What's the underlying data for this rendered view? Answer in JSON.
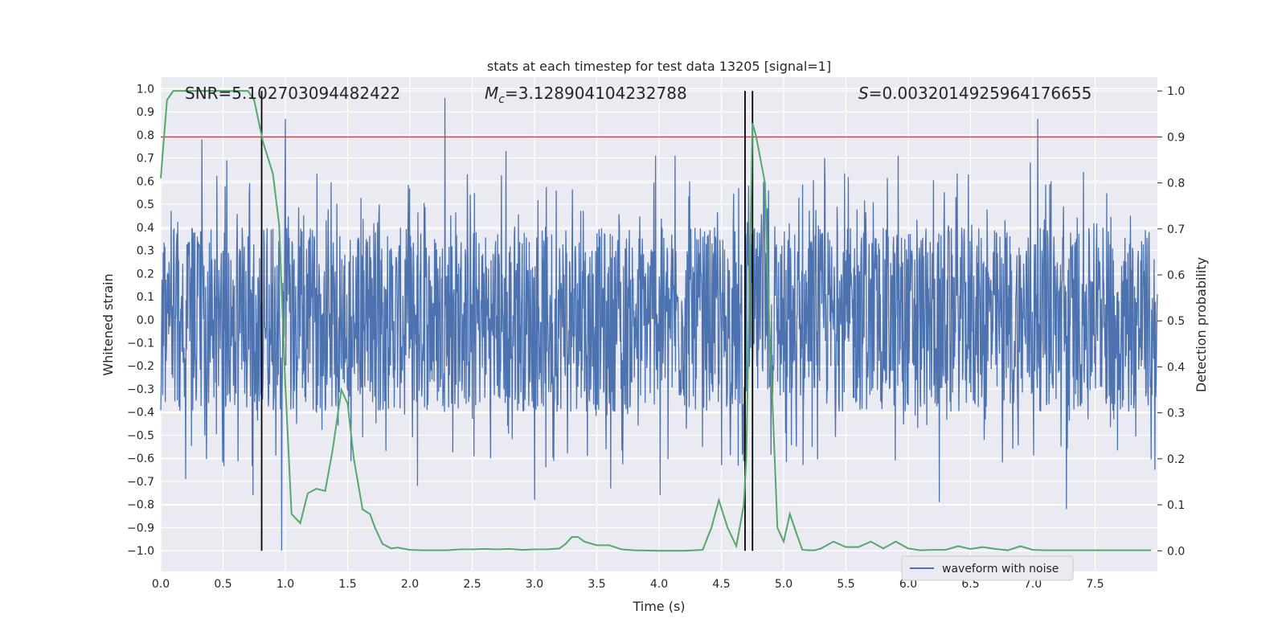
{
  "chart_data": {
    "type": "line",
    "title": "stats at each timestep for test data 13205 [signal=1]",
    "xlabel": "Time (s)",
    "ylabel_left": "Whitened strain",
    "ylabel_right": "Detection probability",
    "xlim": [
      0.0,
      8.0
    ],
    "ylim_left": [
      -1.09,
      1.05
    ],
    "ylim_right": [
      -0.045,
      1.03
    ],
    "x_ticks": [
      0.0,
      0.5,
      1.0,
      1.5,
      2.0,
      2.5,
      3.0,
      3.5,
      4.0,
      4.5,
      5.0,
      5.5,
      6.0,
      6.5,
      7.0,
      7.5
    ],
    "x_tick_labels": [
      "0.0",
      "0.5",
      "1.0",
      "1.5",
      "2.0",
      "2.5",
      "3.0",
      "3.5",
      "4.0",
      "4.5",
      "5.0",
      "5.5",
      "6.0",
      "6.5",
      "7.0",
      "7.5"
    ],
    "y_left_ticks": [
      -1.0,
      -0.9,
      -0.8,
      -0.7,
      -0.6,
      -0.5,
      -0.4,
      -0.3,
      -0.2,
      -0.1,
      0.0,
      0.1,
      0.2,
      0.3,
      0.4,
      0.5,
      0.6,
      0.7,
      0.8,
      0.9,
      1.0
    ],
    "y_left_tick_labels": [
      "−1.0",
      "−0.9",
      "−0.8",
      "−0.7",
      "−0.6",
      "−0.5",
      "−0.4",
      "−0.3",
      "−0.2",
      "−0.1",
      "0.0",
      "0.1",
      "0.2",
      "0.3",
      "0.4",
      "0.5",
      "0.6",
      "0.7",
      "0.8",
      "0.9",
      "1.0"
    ],
    "y_right_ticks": [
      0.0,
      0.1,
      0.2,
      0.3,
      0.4,
      0.5,
      0.6,
      0.7,
      0.8,
      0.9,
      1.0
    ],
    "y_right_tick_labels": [
      "0.0",
      "0.1",
      "0.2",
      "0.3",
      "0.4",
      "0.5",
      "0.6",
      "0.7",
      "0.8",
      "0.9",
      "1.0"
    ],
    "grid": true,
    "annotations": {
      "snr": "SNR=5.102703094482422",
      "mc_symbol": "M",
      "mc_sub": "c",
      "mc_value": "=3.128904104232788",
      "s_symbol": "S",
      "s_value": "=0.0032014925964176655"
    },
    "legend": {
      "placement": "lower-right",
      "entries": [
        "waveform with noise"
      ]
    },
    "threshold": {
      "axis": "right",
      "value": 0.9,
      "color": "#c44e52"
    },
    "vertical_lines": [
      0.81,
      4.69,
      4.75
    ],
    "waveform": {
      "name": "waveform with noise",
      "color": "#4c72b0",
      "samples": 2400,
      "band_upper": 0.4,
      "band_lower": -0.4,
      "spikes": [
        {
          "t": 0.33,
          "v": 0.78
        },
        {
          "t": 0.53,
          "v": 0.69
        },
        {
          "t": 1.0,
          "v": 0.87
        },
        {
          "t": 2.28,
          "v": 0.96
        },
        {
          "t": 2.77,
          "v": 0.73
        },
        {
          "t": 3.97,
          "v": 0.71
        },
        {
          "t": 4.13,
          "v": 0.71
        },
        {
          "t": 5.33,
          "v": 0.7
        },
        {
          "t": 5.92,
          "v": 0.71
        },
        {
          "t": 6.98,
          "v": 0.68
        },
        {
          "t": 7.04,
          "v": 0.87
        },
        {
          "t": 0.2,
          "v": -0.69
        },
        {
          "t": 0.74,
          "v": -0.76
        },
        {
          "t": 0.97,
          "v": -1.0
        },
        {
          "t": 2.06,
          "v": -0.72
        },
        {
          "t": 3.0,
          "v": -0.78
        },
        {
          "t": 3.61,
          "v": -0.73
        },
        {
          "t": 4.01,
          "v": -0.76
        },
        {
          "t": 6.25,
          "v": -0.79
        },
        {
          "t": 7.27,
          "v": -0.82
        },
        {
          "t": 7.98,
          "v": -0.65
        },
        {
          "t": 4.64,
          "v": 0.57
        },
        {
          "t": 4.72,
          "v": 0.58
        },
        {
          "t": 4.88,
          "v": 0.56
        }
      ]
    },
    "detection_probability": {
      "color": "#55a868",
      "x": [
        0.0,
        0.05,
        0.1,
        0.15,
        0.2,
        0.3,
        0.4,
        0.5,
        0.6,
        0.7,
        0.75,
        0.82,
        0.9,
        0.95,
        1.0,
        1.05,
        1.12,
        1.18,
        1.25,
        1.32,
        1.38,
        1.45,
        1.5,
        1.55,
        1.62,
        1.68,
        1.72,
        1.78,
        1.85,
        1.9,
        2.0,
        2.1,
        2.2,
        2.3,
        2.4,
        2.5,
        2.6,
        2.7,
        2.8,
        2.9,
        3.0,
        3.1,
        3.2,
        3.25,
        3.3,
        3.35,
        3.4,
        3.5,
        3.6,
        3.7,
        3.8,
        4.0,
        4.2,
        4.35,
        4.42,
        4.48,
        4.55,
        4.62,
        4.68,
        4.7,
        4.75,
        4.78,
        4.85,
        4.88,
        4.95,
        5.0,
        5.05,
        5.1,
        5.15,
        5.2,
        5.25,
        5.3,
        5.4,
        5.5,
        5.6,
        5.7,
        5.8,
        5.9,
        6.0,
        6.1,
        6.2,
        6.3,
        6.4,
        6.5,
        6.6,
        6.7,
        6.8,
        6.9,
        7.0,
        7.1,
        7.2,
        7.3,
        7.4,
        7.5,
        7.6,
        7.7,
        7.8,
        7.9,
        7.95
      ],
      "y": [
        0.81,
        0.98,
        1.0,
        1.0,
        1.0,
        1.0,
        1.0,
        1.0,
        1.0,
        1.0,
        0.98,
        0.89,
        0.82,
        0.71,
        0.36,
        0.08,
        0.06,
        0.125,
        0.135,
        0.13,
        0.22,
        0.35,
        0.32,
        0.2,
        0.09,
        0.08,
        0.05,
        0.015,
        0.005,
        0.007,
        0.002,
        0.001,
        0.001,
        0.001,
        0.003,
        0.003,
        0.004,
        0.003,
        0.004,
        0.002,
        0.003,
        0.003,
        0.005,
        0.015,
        0.03,
        0.03,
        0.02,
        0.012,
        0.012,
        0.003,
        0.001,
        0.0,
        0.0,
        0.002,
        0.05,
        0.11,
        0.05,
        0.01,
        0.1,
        0.2,
        0.93,
        0.9,
        0.8,
        0.53,
        0.05,
        0.02,
        0.08,
        0.04,
        0.002,
        0.001,
        0.001,
        0.005,
        0.02,
        0.008,
        0.008,
        0.02,
        0.005,
        0.02,
        0.005,
        0.001,
        0.002,
        0.002,
        0.01,
        0.004,
        0.008,
        0.004,
        0.001,
        0.01,
        0.002,
        0.001,
        0.001,
        0.001,
        0.001,
        0.001,
        0.001,
        0.001,
        0.001,
        0.001,
        0.001
      ]
    }
  }
}
